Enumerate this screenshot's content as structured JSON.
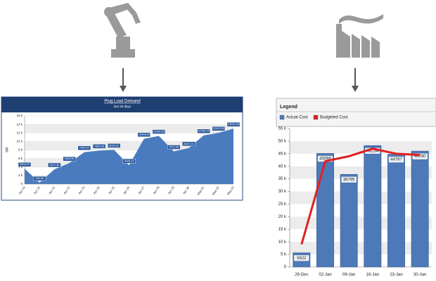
{
  "chart_data": [
    {
      "type": "area",
      "title": "Plug Load Demand",
      "subtitle": "last 30 days",
      "y_label": "kW",
      "categories": [
        "Apr 19",
        "Apr 20",
        "Apr 21",
        "Apr 22",
        "Apr 23",
        "Apr 24",
        "Apr 25",
        "Apr 26",
        "Apr 27",
        "Apr 28",
        "Apr 29",
        "Apr 30",
        "May 01",
        "May 02",
        "May 03"
      ],
      "values": [
        3604.25,
        320.08,
        3472.35,
        4925.88,
        7480.31,
        7864.68,
        8020.12,
        4405.23,
        10608.89,
        11290.83,
        7672.45,
        8447.24,
        11426.14,
        12021.61,
        13011.45
      ],
      "color": "#4a7bbf",
      "ylim": [
        0,
        16000
      ],
      "yticks": [
        {
          "value": 0,
          "label": "0"
        },
        {
          "value": 2000,
          "label": "2 k"
        },
        {
          "value": 4000,
          "label": "4 k"
        },
        {
          "value": 6000,
          "label": "6 k"
        },
        {
          "value": 8000,
          "label": "8 k"
        },
        {
          "value": 10000,
          "label": "10 k"
        },
        {
          "value": 12000,
          "label": "12 k"
        },
        {
          "value": 14000,
          "label": "14 k"
        },
        {
          "value": 16000,
          "label": "16 k"
        }
      ],
      "grid": true
    },
    {
      "type": "bar",
      "legend_title": "Legend",
      "categories": [
        "26-Dec",
        "02-Jan",
        "09-Jan",
        "16-Jan",
        "23-Jan",
        "30-Jan"
      ],
      "series": [
        {
          "name": "Actual Cost",
          "color": "#4e79b9",
          "values": [
            5622,
            45098,
            36795,
            48234,
            44787,
            46030
          ]
        },
        {
          "name": "Budgeted Cost",
          "color": "#e02020",
          "type": "line",
          "values": [
            9000,
            42000,
            44000,
            47000,
            45000,
            44500
          ]
        }
      ],
      "ylim": [
        0,
        55000
      ],
      "yticks": [
        {
          "value": 0,
          "label": "0"
        },
        {
          "value": 5000,
          "label": "5 k"
        },
        {
          "value": 10000,
          "label": "10 k"
        },
        {
          "value": 15000,
          "label": "15 k"
        },
        {
          "value": 20000,
          "label": "20 k"
        },
        {
          "value": 25000,
          "label": "25 k"
        },
        {
          "value": 30000,
          "label": "30 k"
        },
        {
          "value": 35000,
          "label": "35 k"
        },
        {
          "value": 40000,
          "label": "40 k"
        },
        {
          "value": 45000,
          "label": "45 k"
        },
        {
          "value": 50000,
          "label": "50 k"
        },
        {
          "value": 55000,
          "label": "55 k"
        }
      ],
      "grid": true
    }
  ]
}
